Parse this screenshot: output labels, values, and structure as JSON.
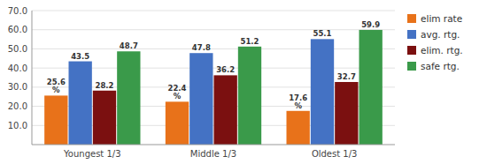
{
  "chart_data": {
    "type": "bar",
    "categories": [
      "Youngest 1/3",
      "Middle 1/3",
      "Oldest 1/3"
    ],
    "series": [
      {
        "name": "elim rate",
        "color": "#E8721A",
        "values": [
          25.6,
          22.4,
          17.6
        ],
        "value_labels": [
          "25.6\n%",
          "22.4\n%",
          "17.6\n%"
        ]
      },
      {
        "name": "avg. rtg.",
        "color": "#4472C4",
        "values": [
          43.5,
          47.8,
          55.1
        ]
      },
      {
        "name": "elim. rtg.",
        "color": "#7B1010",
        "values": [
          28.2,
          36.2,
          32.7
        ]
      },
      {
        "name": "safe rtg.",
        "color": "#3A9A4A",
        "values": [
          48.7,
          51.2,
          59.9
        ]
      }
    ],
    "ylim": [
      0,
      70
    ],
    "yticks": [
      {
        "value": 10,
        "label": "10.0"
      },
      {
        "value": 20,
        "label": "20.0"
      },
      {
        "value": 30,
        "label": "30.0"
      },
      {
        "value": 40,
        "label": "40.0"
      },
      {
        "value": 50,
        "label": "50.0"
      },
      {
        "value": 60,
        "label": "60.0"
      },
      {
        "value": 70,
        "label": "70.0"
      }
    ],
    "grid": true,
    "legend": "right",
    "data_labels": true
  }
}
